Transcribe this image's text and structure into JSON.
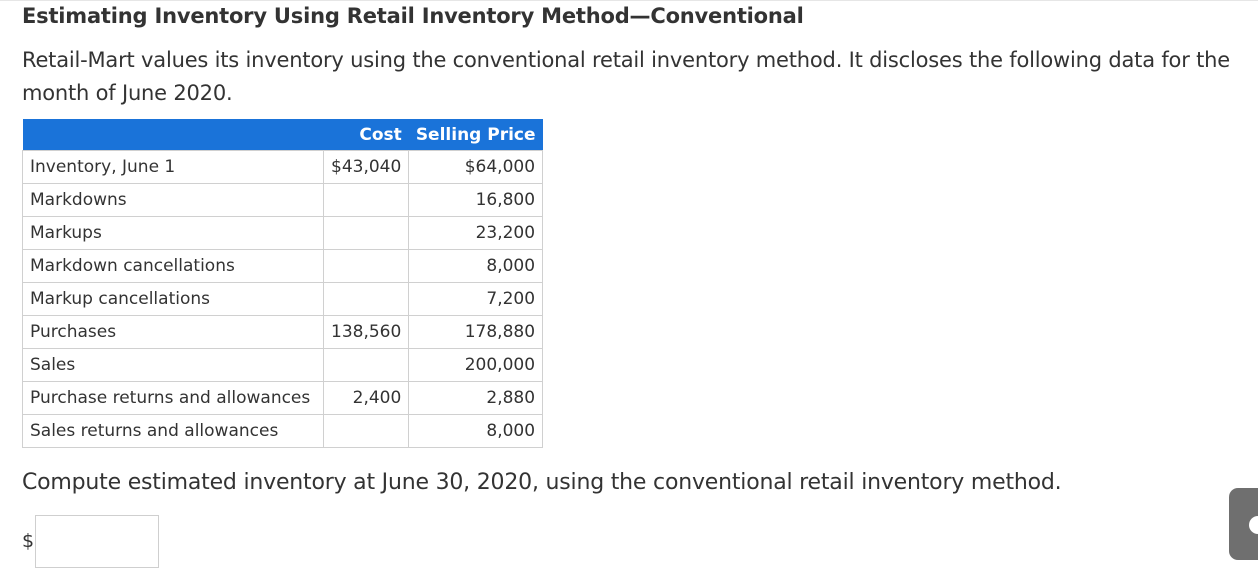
{
  "title": "Estimating Inventory Using Retail Inventory Method—Conventional",
  "intro": "Retail-Mart values its inventory using the conventional retail inventory method. It discloses the following data for the month of June 2020.",
  "table": {
    "headers": {
      "label": "",
      "cost": "Cost",
      "selling_price": "Selling Price"
    },
    "rows": [
      {
        "label": "Inventory, June 1",
        "cost": "$43,040",
        "selling_price": "$64,000"
      },
      {
        "label": "Markdowns",
        "cost": "",
        "selling_price": "16,800"
      },
      {
        "label": "Markups",
        "cost": "",
        "selling_price": "23,200"
      },
      {
        "label": "Markdown cancellations",
        "cost": "",
        "selling_price": "8,000"
      },
      {
        "label": "Markup cancellations",
        "cost": "",
        "selling_price": "7,200"
      },
      {
        "label": "Purchases",
        "cost": "138,560",
        "selling_price": "178,880"
      },
      {
        "label": "Sales",
        "cost": "",
        "selling_price": "200,000"
      },
      {
        "label": "Purchase returns and allowances",
        "cost": "2,400",
        "selling_price": "2,880"
      },
      {
        "label": "Sales returns and allowances",
        "cost": "",
        "selling_price": "8,000"
      }
    ]
  },
  "question": "Compute estimated inventory at June 30, 2020, using the conventional retail inventory method.",
  "answer": {
    "currency_symbol": "$",
    "value": ""
  },
  "colors": {
    "header_bg": "#1a73d9",
    "header_text": "#ffffff",
    "text": "#333333",
    "border": "#d0d0d0"
  },
  "icons": {
    "side_handle": "chevron-handle-icon"
  }
}
